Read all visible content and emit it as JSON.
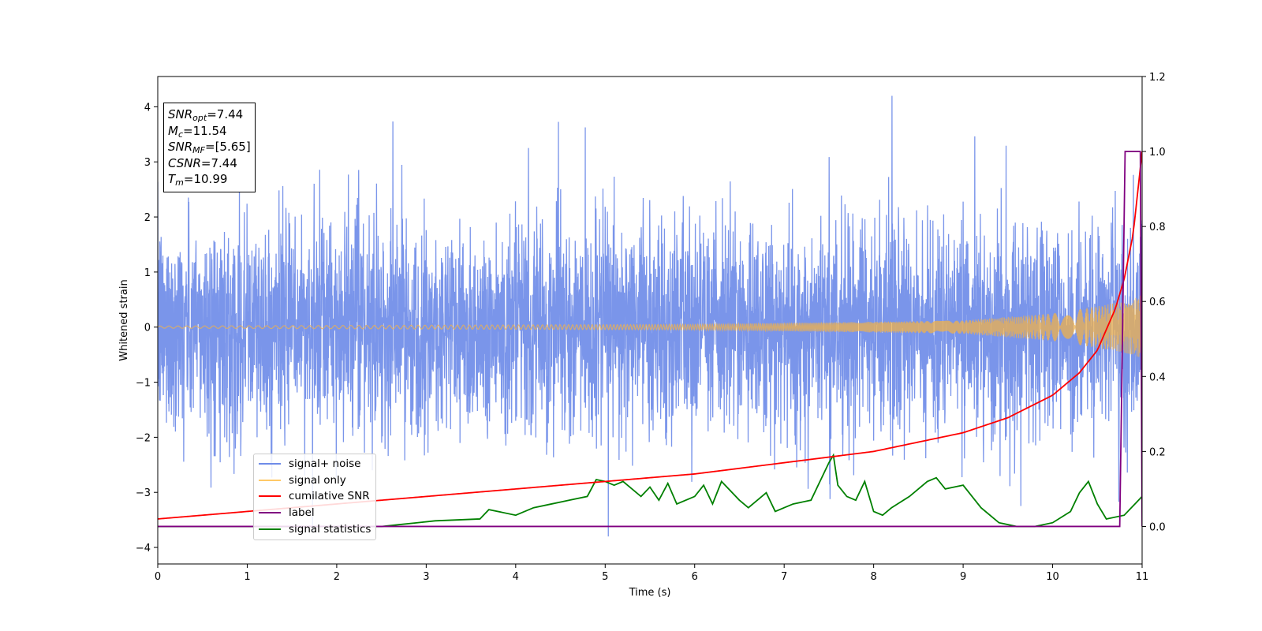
{
  "chart_data": {
    "type": "line",
    "xlabel": "Time (s)",
    "ylabel": "Whitened strain",
    "xlim": [
      0,
      11
    ],
    "ylim": [
      -4.3,
      4.55
    ],
    "y2lim": [
      -0.1,
      1.2
    ],
    "x_ticks": [
      "0",
      "1",
      "2",
      "3",
      "4",
      "5",
      "6",
      "7",
      "8",
      "9",
      "10",
      "11"
    ],
    "y_ticks": [
      "4",
      "3",
      "2",
      "1",
      "0",
      "−1",
      "−2",
      "−3",
      "−4"
    ],
    "y2_ticks": [
      "1.2",
      "1.0",
      "0.8",
      "0.6",
      "0.4",
      "0.2",
      "0.0"
    ],
    "legend_position": "lower left",
    "colors": {
      "signal_noise": "#6f8ce8",
      "signal_only": "#f0b24b",
      "cumulative_snr": "#ff0000",
      "label": "#800080",
      "signal_statistics": "#008000"
    },
    "series": [
      {
        "name": "signal+ noise",
        "axis": "left",
        "description_values": "noise amplitude roughly ±2, peaks up to 4.2 and down to -3.8"
      },
      {
        "name": "signal only",
        "axis": "left",
        "amplitude": [
          [
            0,
            0.02
          ],
          [
            6,
            0.05
          ],
          [
            9,
            0.12
          ],
          [
            10,
            0.25
          ],
          [
            10.5,
            0.38
          ],
          [
            10.9,
            0.5
          ],
          [
            11,
            0.6
          ]
        ]
      },
      {
        "name": "cumilative SNR",
        "axis": "right",
        "x": [
          0,
          1,
          2,
          3,
          4,
          5,
          6,
          7,
          8,
          9,
          9.5,
          10,
          10.3,
          10.5,
          10.7,
          10.8,
          10.9,
          11.0
        ],
        "y": [
          0.02,
          0.04,
          0.06,
          0.08,
          0.1,
          0.12,
          0.14,
          0.17,
          0.2,
          0.25,
          0.29,
          0.35,
          0.41,
          0.47,
          0.58,
          0.66,
          0.78,
          1.0
        ]
      },
      {
        "name": "label",
        "axis": "right",
        "x": [
          0,
          10.75,
          10.81,
          10.98,
          11.0
        ],
        "y": [
          0,
          0,
          1.0,
          1.0,
          0.0
        ]
      },
      {
        "name": "signal statistics",
        "axis": "right",
        "x": [
          0,
          2.5,
          2.9,
          3.1,
          3.6,
          3.7,
          4.0,
          4.2,
          4.4,
          4.6,
          4.8,
          4.9,
          5.0,
          5.1,
          5.2,
          5.4,
          5.5,
          5.6,
          5.7,
          5.8,
          6.0,
          6.1,
          6.2,
          6.3,
          6.5,
          6.6,
          6.7,
          6.8,
          6.9,
          7.0,
          7.1,
          7.3,
          7.5,
          7.55,
          7.6,
          7.7,
          7.8,
          7.9,
          8.0,
          8.1,
          8.2,
          8.4,
          8.6,
          8.7,
          8.8,
          9.0,
          9.2,
          9.4,
          9.6,
          9.8,
          10.0,
          10.2,
          10.3,
          10.4,
          10.5,
          10.6,
          10.8,
          11.0
        ],
        "y": [
          0.0,
          0.0,
          0.01,
          0.015,
          0.02,
          0.045,
          0.03,
          0.05,
          0.06,
          0.07,
          0.08,
          0.125,
          0.12,
          0.11,
          0.12,
          0.08,
          0.105,
          0.07,
          0.115,
          0.06,
          0.08,
          0.11,
          0.06,
          0.12,
          0.07,
          0.05,
          0.07,
          0.09,
          0.04,
          0.05,
          0.06,
          0.07,
          0.17,
          0.19,
          0.11,
          0.08,
          0.07,
          0.12,
          0.04,
          0.03,
          0.05,
          0.08,
          0.12,
          0.13,
          0.1,
          0.11,
          0.05,
          0.01,
          0.0,
          0.0,
          0.01,
          0.04,
          0.09,
          0.12,
          0.06,
          0.02,
          0.03,
          0.08
        ]
      }
    ]
  },
  "info_box": {
    "snr_opt_main": "SNR",
    "snr_opt_sub": "opt",
    "snr_opt_value": "=7.44",
    "mc_main": "M",
    "mc_sub": "c",
    "mc_value": "=11.54",
    "snr_mf_main": "SNR",
    "snr_mf_sub": "MF",
    "snr_mf_value": "=[5.65]",
    "csnr_main": "CSNR",
    "csnr_value": "=7.44",
    "tm_main": "T",
    "tm_sub": "m",
    "tm_value": "=10.99"
  },
  "legend": {
    "items": [
      {
        "label": "signal+ noise",
        "color": "#6f8ce8"
      },
      {
        "label": "signal only",
        "color": "#ffc966"
      },
      {
        "label": "cumilative SNR",
        "color": "#ff0000"
      },
      {
        "label": "label",
        "color": "#800080"
      },
      {
        "label": "signal statistics",
        "color": "#008000"
      }
    ]
  }
}
